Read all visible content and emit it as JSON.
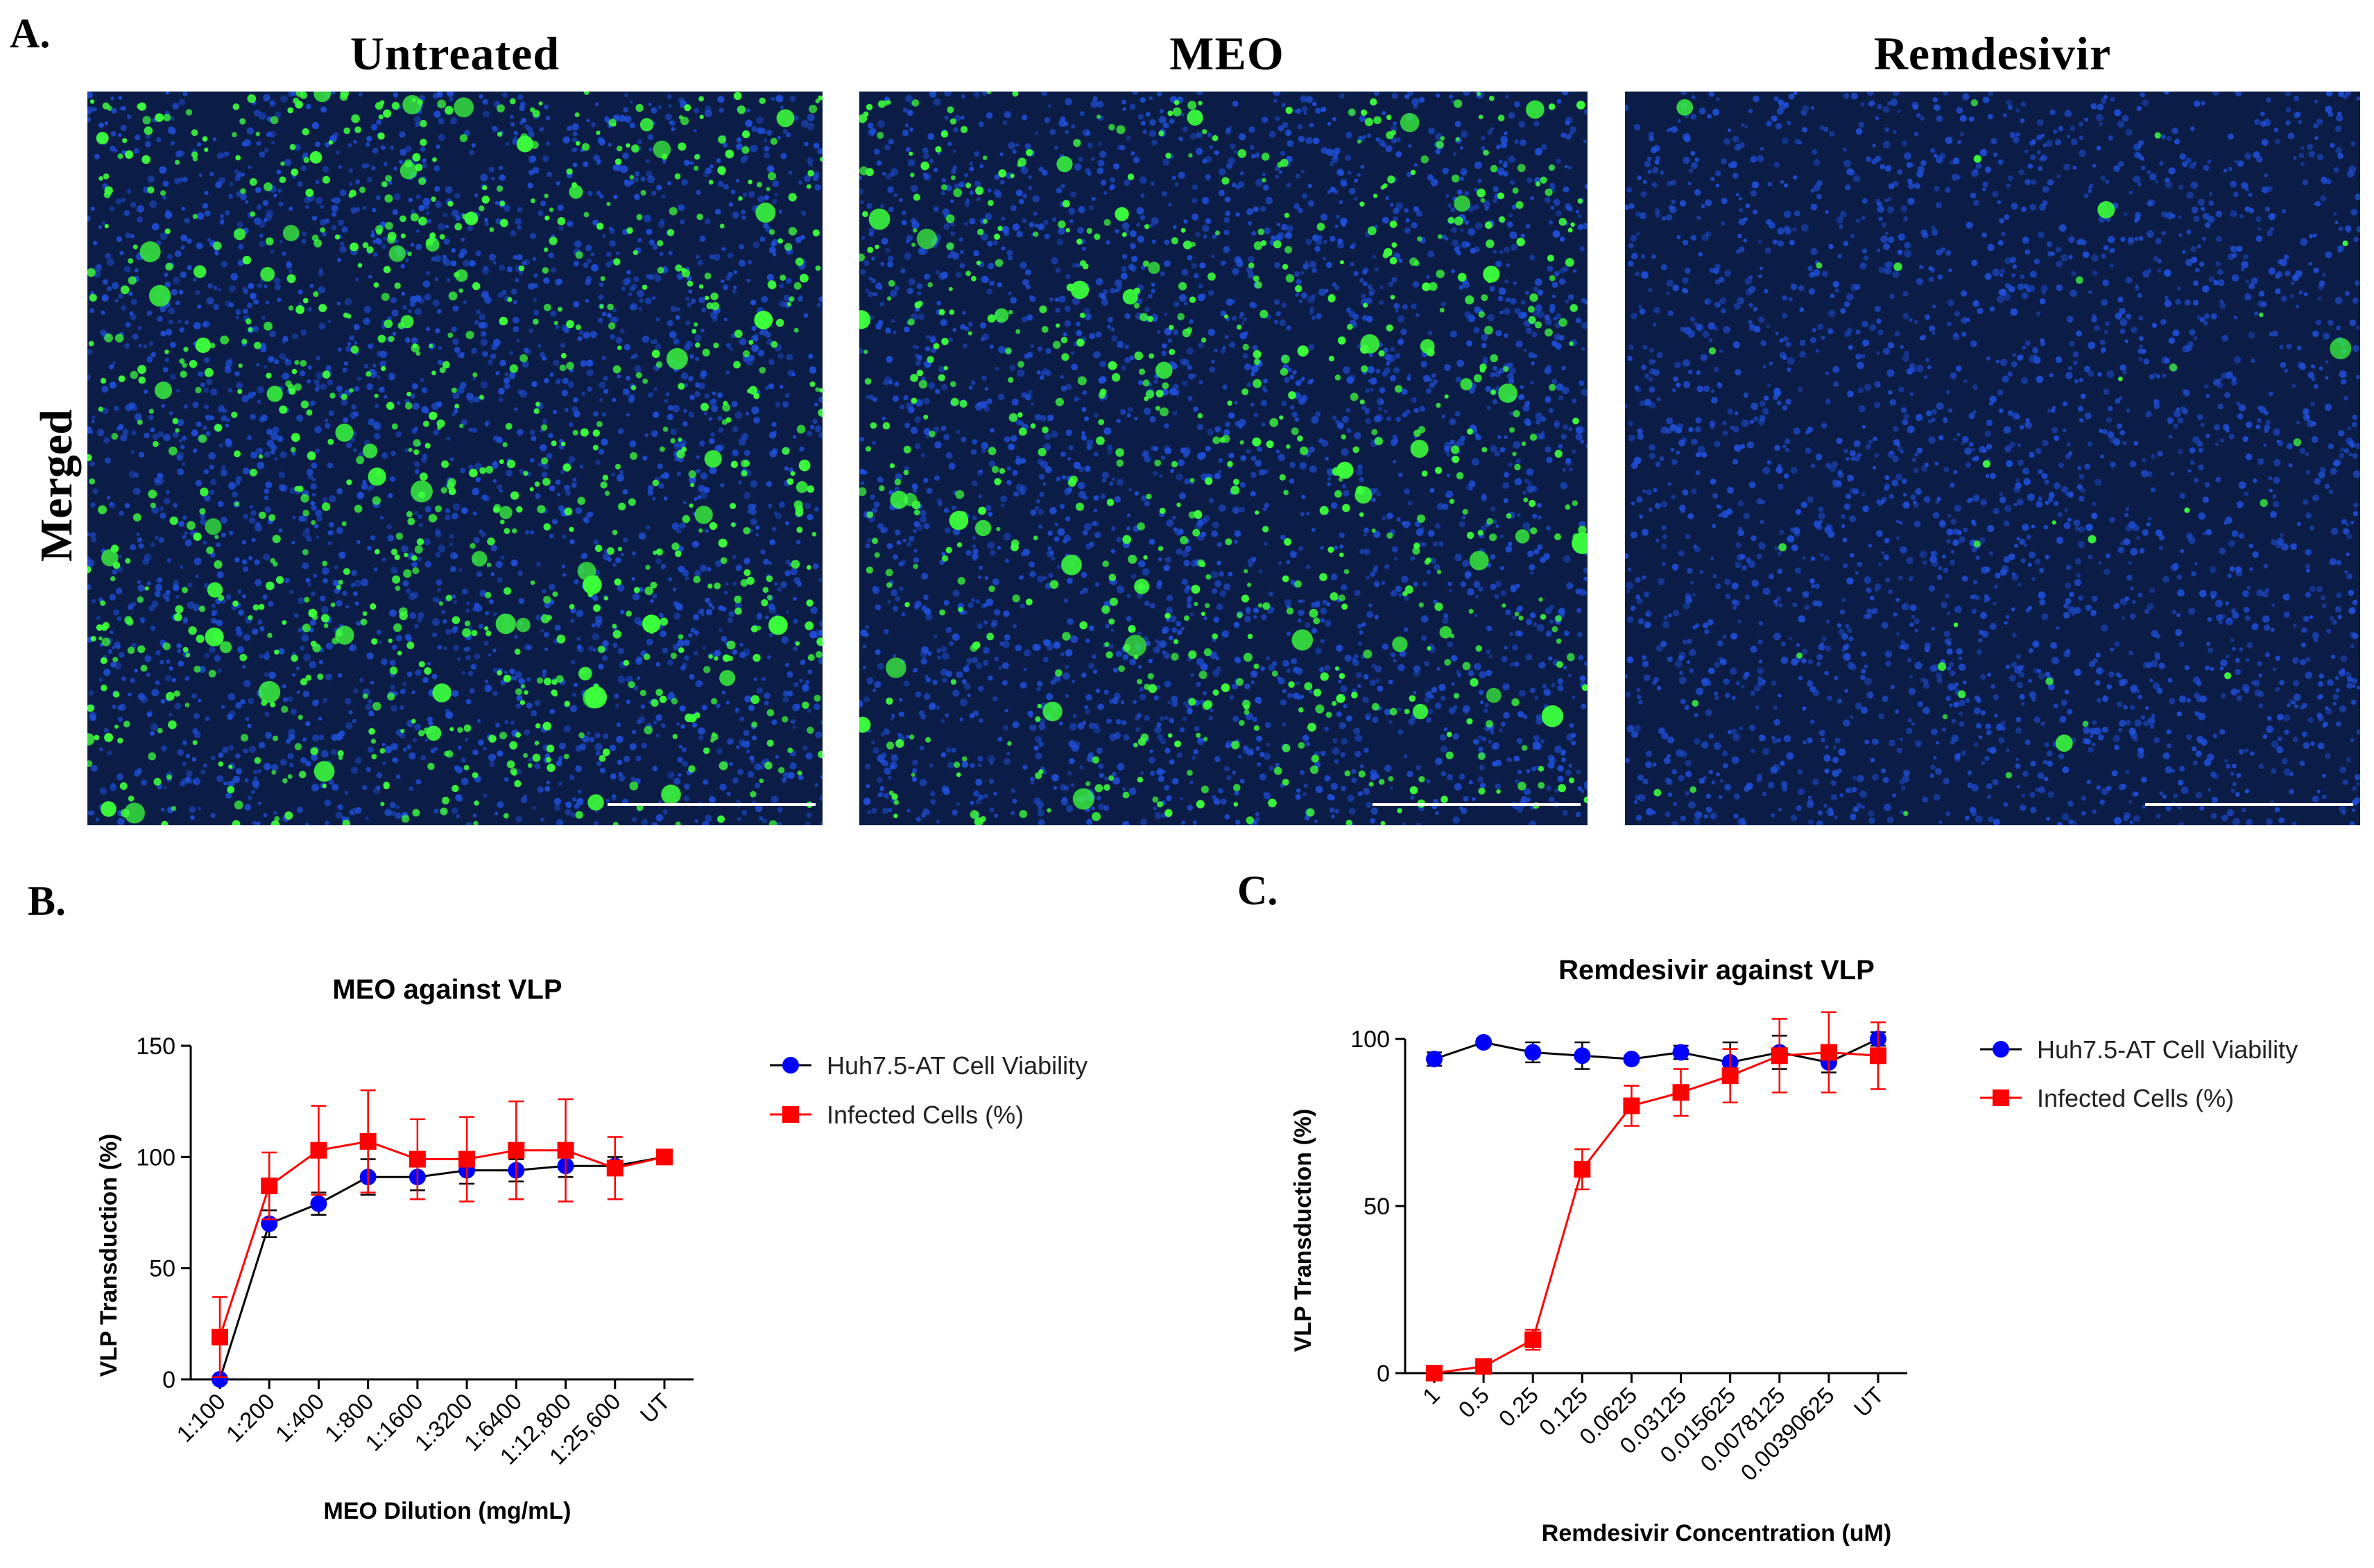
{
  "panel_a": {
    "letter": "A.",
    "row_label": "Merged",
    "columns": [
      {
        "title": "Untreated",
        "green_density": 1.0
      },
      {
        "title": "MEO",
        "green_density": 0.75
      },
      {
        "title": "Remdesivir",
        "green_density": 0.04
      }
    ],
    "colors": {
      "nuclei": "#1f4fd8",
      "infected": "#3cff3c",
      "background": "#0b1d47",
      "scale_bar": "#ffffff"
    }
  },
  "panel_b": {
    "letter": "B."
  },
  "panel_c": {
    "letter": "C."
  },
  "chart_data": [
    {
      "type": "line",
      "title": "MEO against VLP",
      "xlabel": "MEO Dilution (mg/mL)",
      "ylabel": "VLP Transduction (%)",
      "categories": [
        "1:100",
        "1:200",
        "1:400",
        "1:800",
        "1:1600",
        "1:3200",
        "1:6400",
        "1:12,800",
        "1:25,600",
        "UT"
      ],
      "ylim": [
        0,
        150
      ],
      "yticks": [
        0,
        50,
        100,
        150
      ],
      "legend": "right",
      "series": [
        {
          "name": "Huh7.5-AT Cell Viability",
          "color": "#0000ff",
          "line_color": "#000000",
          "marker": "circle",
          "values": [
            0,
            70,
            79,
            91,
            91,
            94,
            94,
            96,
            96,
            100
          ],
          "errors": [
            0,
            6,
            5,
            8,
            6,
            6,
            5,
            5,
            4,
            2
          ]
        },
        {
          "name": "Infected Cells (%)",
          "color": "#ff0000",
          "line_color": "#ff0000",
          "marker": "square",
          "values": [
            19,
            87,
            103,
            107,
            99,
            99,
            103,
            103,
            95,
            100
          ],
          "errors": [
            18,
            15,
            20,
            23,
            18,
            19,
            22,
            23,
            14,
            2
          ]
        }
      ]
    },
    {
      "type": "line",
      "title": "Remdesivir against VLP",
      "xlabel": "Remdesivir Concentration (uM)",
      "ylabel": "VLP Transduction (%)",
      "categories": [
        "1",
        "0.5",
        "0.25",
        "0.125",
        "0.0625",
        "0.03125",
        "0.015625",
        "0.0078125",
        "0.00390625",
        "UT"
      ],
      "ylim": [
        0,
        110
      ],
      "yticks": [
        0,
        50,
        100
      ],
      "legend": "right",
      "series": [
        {
          "name": "Huh7.5-AT Cell Viability",
          "color": "#0000ff",
          "line_color": "#000000",
          "marker": "circle",
          "values": [
            94,
            99,
            96,
            95,
            94,
            96,
            93,
            96,
            93,
            100
          ],
          "errors": [
            2,
            1,
            3,
            4,
            1,
            2,
            6,
            5,
            3,
            2
          ]
        },
        {
          "name": "Infected Cells (%)",
          "color": "#ff0000",
          "line_color": "#ff0000",
          "marker": "square",
          "values": [
            0,
            2,
            10,
            61,
            80,
            84,
            89,
            95,
            96,
            95
          ],
          "errors": [
            1,
            2,
            3,
            6,
            6,
            7,
            8,
            11,
            12,
            10
          ]
        }
      ]
    }
  ]
}
